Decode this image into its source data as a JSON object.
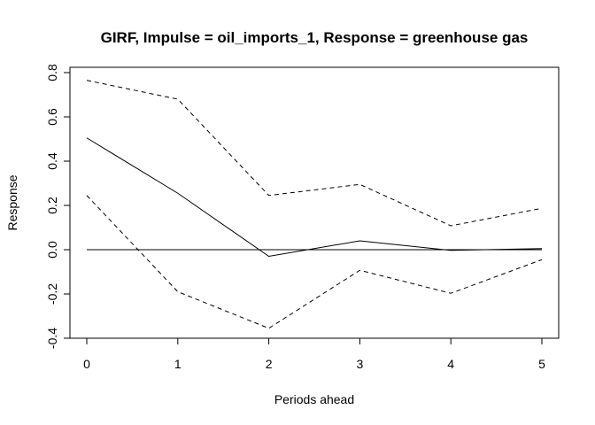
{
  "chart_data": {
    "type": "line",
    "title": "GIRF, Impulse = oil_imports_1, Response = greenhouse gas",
    "xlabel": "Periods ahead",
    "ylabel": "Response",
    "x": [
      0,
      1,
      2,
      3,
      4,
      5
    ],
    "xlim": [
      0,
      5
    ],
    "ylim": [
      -0.4,
      0.8
    ],
    "xticks": [
      "0",
      "1",
      "2",
      "3",
      "4",
      "5"
    ],
    "yticks": [
      "-0.4",
      "-0.2",
      "0.0",
      "0.2",
      "0.4",
      "0.6",
      "0.8"
    ],
    "grid": false,
    "legend": "none",
    "zero_line": 0,
    "series": [
      {
        "style": "solid",
        "values": [
          0.505,
          0.255,
          -0.03,
          0.04,
          -0.003,
          0.005
        ]
      },
      {
        "style": "dashed",
        "values": [
          0.765,
          0.68,
          0.245,
          0.295,
          0.108,
          0.187
        ]
      },
      {
        "style": "dashed",
        "values": [
          0.245,
          -0.19,
          -0.355,
          -0.093,
          -0.197,
          -0.045
        ]
      }
    ]
  }
}
